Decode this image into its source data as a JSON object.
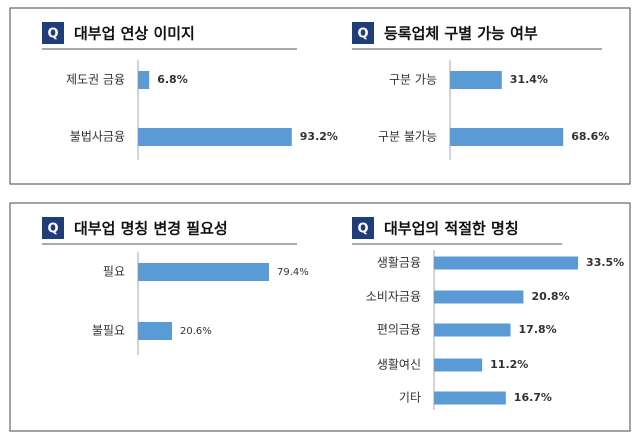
{
  "chart_data": [
    {
      "type": "bar",
      "orientation": "horizontal",
      "badge": "Q",
      "title": "대부업 연상 이미지",
      "categories": [
        "제도권 금융",
        "불법사금융"
      ],
      "values": [
        6.8,
        93.2
      ],
      "value_labels": [
        "6.8%",
        "93.2%"
      ],
      "color": "#5b9bd5",
      "xlim": [
        0,
        100
      ]
    },
    {
      "type": "bar",
      "orientation": "horizontal",
      "badge": "Q",
      "title": "등록업체 구별 가능 여부",
      "categories": [
        "구분 가능",
        "구분 불가능"
      ],
      "values": [
        31.4,
        68.6
      ],
      "value_labels": [
        "31.4%",
        "68.6%"
      ],
      "color": "#5b9bd5",
      "xlim": [
        0,
        100
      ]
    },
    {
      "type": "bar",
      "orientation": "horizontal",
      "badge": "Q",
      "title": "대부업 명칭 변경 필요성",
      "categories": [
        "필요",
        "불필요"
      ],
      "values": [
        79.4,
        20.6
      ],
      "value_labels": [
        "79.4%",
        "20.6%"
      ],
      "color": "#5b9bd5",
      "xlim": [
        0,
        100
      ]
    },
    {
      "type": "bar",
      "orientation": "horizontal",
      "badge": "Q",
      "title": "대부업의 적절한 명칭",
      "categories": [
        "생활금융",
        "소비자금융",
        "편의금융",
        "생활여신",
        "기타"
      ],
      "values": [
        33.5,
        20.8,
        17.8,
        11.2,
        16.7
      ],
      "value_labels": [
        "33.5%",
        "20.8%",
        "17.8%",
        "11.2%",
        "16.7%"
      ],
      "color": "#5b9bd5",
      "xlim": [
        0,
        40
      ]
    }
  ]
}
